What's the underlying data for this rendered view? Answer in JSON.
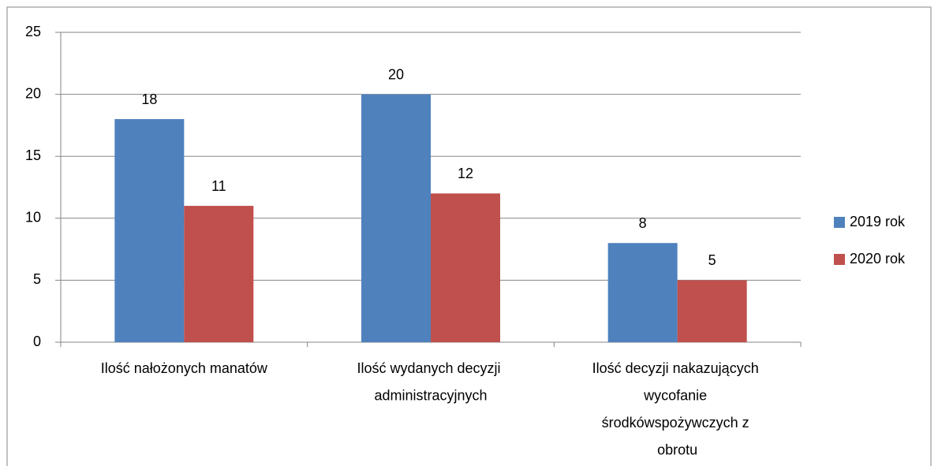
{
  "chart_data": {
    "type": "bar",
    "categories": [
      "Ilość nałożonych manatów",
      "Ilość wydanych decyzji administracyjnych",
      "Ilość decyzji nakazujących wycofanie środkówspożywczych z obrotu"
    ],
    "series": [
      {
        "name": "2019 rok",
        "color": "#4f81bd",
        "values": [
          18,
          20,
          8
        ]
      },
      {
        "name": "2020 rok",
        "color": "#c0504d",
        "values": [
          11,
          12,
          5
        ]
      }
    ],
    "ylim": [
      0,
      25
    ],
    "yticks": [
      0,
      5,
      10,
      15,
      20,
      25
    ],
    "grid": true,
    "legend": "right"
  }
}
